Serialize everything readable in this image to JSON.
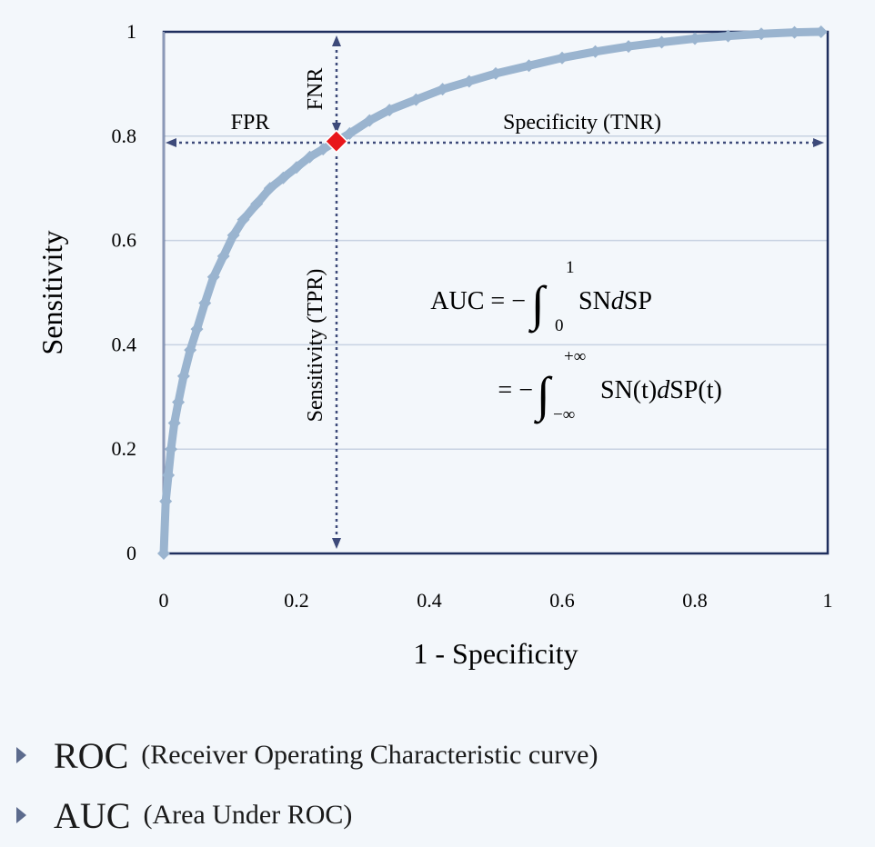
{
  "chart_data": {
    "type": "scatter",
    "title": "",
    "xlabel": "1 - Specificity",
    "ylabel": "Sensitivity",
    "xlim": [
      0,
      1
    ],
    "ylim": [
      0,
      1
    ],
    "xticks": [
      "0",
      "0.2",
      "0.4",
      "0.6",
      "0.8",
      "1"
    ],
    "yticks": [
      "0",
      "0.2",
      "0.4",
      "0.6",
      "0.8",
      "1"
    ],
    "grid": "horizontal",
    "series": [
      {
        "color": "#9ab4cf",
        "marker": "diamond",
        "x": [
          0,
          0.003,
          0.007,
          0.011,
          0.016,
          0.022,
          0.03,
          0.04,
          0.05,
          0.062,
          0.075,
          0.09,
          0.105,
          0.12,
          0.14,
          0.16,
          0.18,
          0.2,
          0.22,
          0.24,
          0.26,
          0.28,
          0.31,
          0.34,
          0.38,
          0.42,
          0.46,
          0.5,
          0.55,
          0.6,
          0.65,
          0.7,
          0.75,
          0.8,
          0.85,
          0.9,
          0.95,
          0.99
        ],
        "y": [
          0,
          0.1,
          0.15,
          0.2,
          0.25,
          0.29,
          0.34,
          0.39,
          0.43,
          0.48,
          0.53,
          0.57,
          0.61,
          0.64,
          0.67,
          0.7,
          0.72,
          0.74,
          0.76,
          0.775,
          0.79,
          0.805,
          0.83,
          0.85,
          0.87,
          0.89,
          0.905,
          0.92,
          0.935,
          0.95,
          0.962,
          0.972,
          0.98,
          0.987,
          0.992,
          0.996,
          0.999,
          1.0
        ]
      }
    ],
    "highlight_point": {
      "x": 0.26,
      "y": 0.79,
      "color": "#e8161b"
    },
    "annotations": {
      "fpr": "FPR",
      "fnr": "FNR",
      "tnr": "Specificity (TNR)",
      "tpr": "Sensitivity (TPR)",
      "eq1_lhs": "AUC = −",
      "eq1_body": "SN",
      "eq1_d": "d",
      "eq1_tail": "SP",
      "eq1_upper": "1",
      "eq1_lower": "0",
      "eq2_lhs": "= −",
      "eq2_body": "SN(t)",
      "eq2_d": "d",
      "eq2_tail": "SP(t)",
      "eq2_upper": "+∞",
      "eq2_lower": "−∞"
    }
  },
  "bullets": [
    {
      "big": "ROC",
      "small": "(Receiver Operating Characteristic curve)"
    },
    {
      "big": "AUC",
      "small": "(Area Under ROC)"
    }
  ]
}
